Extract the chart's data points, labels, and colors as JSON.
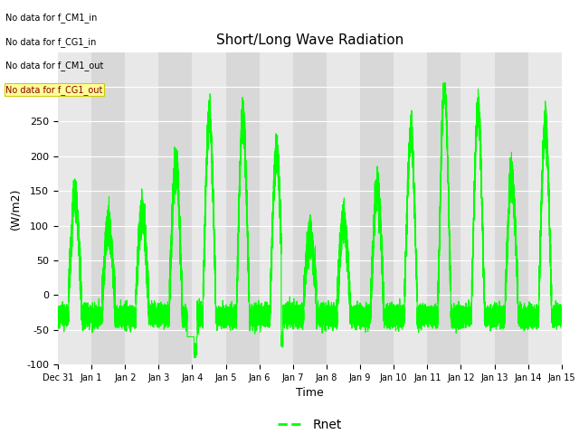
{
  "title": "Short/Long Wave Radiation",
  "ylabel": "(W/m2)",
  "xlabel": "Time",
  "ylim": [
    -100,
    350
  ],
  "yticks": [
    -100,
    -50,
    0,
    50,
    100,
    150,
    200,
    250,
    300
  ],
  "x_tick_labels": [
    "Dec 31",
    "Jan 1",
    "Jan 2",
    "Jan 3",
    "Jan 4",
    "Jan 5",
    "Jan 6",
    "Jan 7",
    "Jan 8",
    "Jan 9",
    "Jan 10",
    "Jan 11",
    "Jan 12",
    "Jan 13",
    "Jan 14",
    "Jan 15"
  ],
  "line_color": "#00FF00",
  "line_width": 0.8,
  "bg_color": "#FFFFFF",
  "plot_bg_light": "#E8E8E8",
  "plot_bg_dark": "#D8D8D8",
  "legend_label": "Rnet",
  "no_data_texts": [
    "No data for f_CM1_in",
    "No data for f_CG1_in",
    "No data for f_CM1_out",
    "No data for f_CG1_out"
  ],
  "no_data_color": "#8B0000",
  "no_data_bg": "#FFFF99",
  "title_fontsize": 11,
  "label_fontsize": 9,
  "tick_fontsize": 8,
  "seed": 42,
  "num_points": 21600,
  "peaks": [
    145,
    100,
    120,
    190,
    260,
    253,
    205,
    85,
    105,
    155,
    230,
    300,
    263,
    170,
    245
  ]
}
